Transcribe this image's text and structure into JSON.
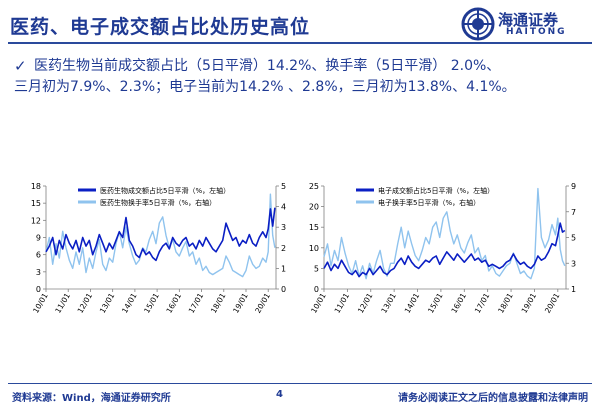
{
  "header": {
    "title": "医药、电子成交额占比处历史高位",
    "logo_cn": "海通证券",
    "logo_en": "HAITONG"
  },
  "bullet": {
    "check_icon": "check-icon",
    "line1": "医药生物当前成交额占比（5日平滑）14.2%、换手率（5日平滑） 2.0%、",
    "line2": "三月初为7.9%、2.3%；电子当前为14.2% 、2.8%，三月初为13.8%、4.1%。"
  },
  "footer": {
    "source": "资料来源：Wind，海通证券研究所",
    "page": "4",
    "disclaimer": "请务必阅读正文之后的信息披露和法律声明"
  },
  "colors": {
    "accent": "#1f3a93",
    "series_dark": "#0b1fc4",
    "series_light": "#8fc3ee"
  },
  "chart_data": [
    {
      "type": "line",
      "x_ticks": [
        "10/01",
        "11/01",
        "12/01",
        "13/01",
        "14/01",
        "15/01",
        "16/01",
        "17/01",
        "18/01",
        "19/01",
        "20/01"
      ],
      "x_range": [
        2010.0,
        2020.35
      ],
      "left_ylim": [
        0,
        18
      ],
      "left_ticks": [
        0,
        3,
        6,
        9,
        12,
        15,
        18
      ],
      "right_ylim": [
        0,
        5
      ],
      "right_ticks": [
        0,
        1,
        2,
        3,
        4,
        5
      ],
      "legend_position": "top",
      "series": [
        {
          "name": "医药生物成交额占比5日平滑（%，左轴）",
          "axis": "left",
          "color": "#0b1fc4",
          "x": [
            2010.0,
            2010.15,
            2010.3,
            2010.45,
            2010.6,
            2010.75,
            2010.9,
            2011.05,
            2011.2,
            2011.35,
            2011.5,
            2011.65,
            2011.8,
            2011.95,
            2012.1,
            2012.25,
            2012.4,
            2012.55,
            2012.7,
            2012.85,
            2013.0,
            2013.15,
            2013.3,
            2013.45,
            2013.6,
            2013.75,
            2013.9,
            2014.05,
            2014.2,
            2014.35,
            2014.5,
            2014.65,
            2014.8,
            2014.95,
            2015.1,
            2015.25,
            2015.4,
            2015.55,
            2015.7,
            2015.85,
            2016.0,
            2016.15,
            2016.3,
            2016.45,
            2016.6,
            2016.75,
            2016.9,
            2017.05,
            2017.2,
            2017.35,
            2017.5,
            2017.65,
            2017.8,
            2017.95,
            2018.1,
            2018.25,
            2018.4,
            2018.55,
            2018.7,
            2018.85,
            2019.0,
            2019.15,
            2019.3,
            2019.45,
            2019.6,
            2019.75,
            2019.9,
            2020.0,
            2020.1,
            2020.2,
            2020.3
          ],
          "values": [
            6.5,
            7.5,
            9.0,
            6.0,
            8.5,
            7.0,
            9.5,
            8.0,
            7.0,
            8.5,
            6.5,
            9.0,
            7.5,
            8.5,
            6.0,
            7.5,
            9.5,
            8.0,
            6.5,
            8.0,
            7.0,
            8.5,
            10.0,
            9.0,
            12.5,
            8.5,
            7.5,
            6.0,
            5.5,
            7.0,
            6.0,
            6.5,
            5.5,
            5.0,
            6.5,
            7.5,
            8.0,
            7.0,
            9.0,
            8.0,
            7.5,
            8.5,
            9.0,
            7.5,
            8.0,
            7.0,
            8.5,
            7.5,
            9.0,
            8.0,
            7.0,
            6.5,
            7.5,
            8.5,
            11.5,
            10.0,
            8.5,
            9.0,
            7.5,
            8.5,
            8.0,
            9.5,
            8.0,
            7.5,
            9.0,
            10.0,
            9.0,
            10.5,
            14.0,
            11.0,
            14.2
          ]
        },
        {
          "name": "医药生物换手率5日平滑（%，右轴）",
          "axis": "right",
          "color": "#8fc3ee",
          "x": [
            2010.0,
            2010.15,
            2010.3,
            2010.45,
            2010.6,
            2010.75,
            2010.9,
            2011.05,
            2011.2,
            2011.35,
            2011.5,
            2011.65,
            2011.8,
            2011.95,
            2012.1,
            2012.25,
            2012.4,
            2012.55,
            2012.7,
            2012.85,
            2013.0,
            2013.15,
            2013.3,
            2013.45,
            2013.6,
            2013.75,
            2013.9,
            2014.05,
            2014.2,
            2014.35,
            2014.5,
            2014.65,
            2014.8,
            2014.95,
            2015.1,
            2015.25,
            2015.4,
            2015.55,
            2015.7,
            2015.85,
            2016.0,
            2016.15,
            2016.3,
            2016.45,
            2016.6,
            2016.75,
            2016.9,
            2017.05,
            2017.2,
            2017.35,
            2017.5,
            2017.65,
            2017.8,
            2017.95,
            2018.1,
            2018.25,
            2018.4,
            2018.55,
            2018.7,
            2018.85,
            2019.0,
            2019.15,
            2019.3,
            2019.45,
            2019.6,
            2019.75,
            2019.9,
            2020.0,
            2020.1,
            2020.2,
            2020.3
          ],
          "values": [
            1.8,
            2.5,
            1.2,
            2.2,
            1.5,
            2.8,
            2.0,
            1.4,
            1.0,
            1.8,
            1.2,
            2.0,
            0.8,
            1.5,
            1.0,
            1.8,
            2.4,
            1.2,
            0.9,
            1.5,
            1.3,
            2.2,
            2.8,
            2.0,
            3.0,
            2.2,
            1.6,
            1.2,
            1.4,
            2.0,
            1.8,
            2.4,
            2.8,
            2.2,
            3.2,
            3.5,
            2.6,
            2.0,
            2.4,
            1.8,
            1.6,
            2.0,
            2.3,
            1.6,
            1.8,
            1.2,
            1.5,
            0.9,
            1.1,
            0.8,
            0.7,
            0.8,
            0.9,
            1.0,
            1.6,
            1.3,
            0.9,
            0.8,
            0.7,
            0.6,
            0.9,
            1.6,
            1.2,
            1.0,
            1.1,
            1.5,
            1.3,
            1.8,
            4.6,
            2.6,
            2.0
          ]
        }
      ]
    },
    {
      "type": "line",
      "x_ticks": [
        "10/01",
        "11/01",
        "12/01",
        "13/01",
        "14/01",
        "15/01",
        "16/01",
        "17/01",
        "18/01",
        "19/01",
        "20/01"
      ],
      "x_range": [
        2010.0,
        2020.35
      ],
      "left_ylim": [
        0,
        25
      ],
      "left_ticks": [
        0,
        5,
        10,
        15,
        20,
        25
      ],
      "right_ylim": [
        1,
        9
      ],
      "right_ticks": [
        1,
        3,
        5,
        7,
        9
      ],
      "legend_position": "top",
      "series": [
        {
          "name": "电子成交额占比5日平滑（%，左轴）",
          "axis": "left",
          "color": "#0b1fc4",
          "x": [
            2010.0,
            2010.15,
            2010.3,
            2010.45,
            2010.6,
            2010.75,
            2010.9,
            2011.05,
            2011.2,
            2011.35,
            2011.5,
            2011.65,
            2011.8,
            2011.95,
            2012.1,
            2012.25,
            2012.4,
            2012.55,
            2012.7,
            2012.85,
            2013.0,
            2013.15,
            2013.3,
            2013.45,
            2013.6,
            2013.75,
            2013.9,
            2014.05,
            2014.2,
            2014.35,
            2014.5,
            2014.65,
            2014.8,
            2014.95,
            2015.1,
            2015.25,
            2015.4,
            2015.55,
            2015.7,
            2015.85,
            2016.0,
            2016.15,
            2016.3,
            2016.45,
            2016.6,
            2016.75,
            2016.9,
            2017.05,
            2017.2,
            2017.35,
            2017.5,
            2017.65,
            2017.8,
            2017.95,
            2018.1,
            2018.25,
            2018.4,
            2018.55,
            2018.7,
            2018.85,
            2019.0,
            2019.15,
            2019.3,
            2019.45,
            2019.6,
            2019.75,
            2019.9,
            2020.0,
            2020.1,
            2020.2,
            2020.3
          ],
          "values": [
            5.0,
            6.5,
            4.5,
            6.0,
            5.0,
            7.0,
            5.5,
            4.0,
            3.5,
            4.5,
            3.0,
            4.0,
            3.5,
            5.0,
            3.5,
            4.5,
            5.5,
            4.0,
            3.5,
            4.5,
            5.0,
            6.5,
            7.5,
            6.0,
            8.0,
            6.5,
            5.5,
            5.0,
            6.0,
            7.0,
            6.5,
            7.5,
            8.0,
            6.0,
            7.5,
            9.0,
            8.0,
            7.0,
            8.5,
            7.5,
            6.5,
            7.5,
            8.5,
            7.0,
            7.5,
            6.5,
            7.0,
            5.5,
            6.0,
            5.5,
            5.0,
            5.5,
            6.5,
            7.0,
            8.5,
            7.0,
            6.0,
            6.5,
            5.5,
            5.0,
            6.0,
            8.0,
            7.0,
            7.5,
            9.0,
            11.0,
            10.5,
            13.0,
            16.0,
            13.8,
            14.2
          ]
        },
        {
          "name": "电子换手率5日平滑（%，右轴）",
          "axis": "right",
          "color": "#8fc3ee",
          "x": [
            2010.0,
            2010.15,
            2010.3,
            2010.45,
            2010.6,
            2010.75,
            2010.9,
            2011.05,
            2011.2,
            2011.35,
            2011.5,
            2011.65,
            2011.8,
            2011.95,
            2012.1,
            2012.25,
            2012.4,
            2012.55,
            2012.7,
            2012.85,
            2013.0,
            2013.15,
            2013.3,
            2013.45,
            2013.6,
            2013.75,
            2013.9,
            2014.05,
            2014.2,
            2014.35,
            2014.5,
            2014.65,
            2014.8,
            2014.95,
            2015.1,
            2015.25,
            2015.4,
            2015.55,
            2015.7,
            2015.85,
            2016.0,
            2016.15,
            2016.3,
            2016.45,
            2016.6,
            2016.75,
            2016.9,
            2017.05,
            2017.2,
            2017.35,
            2017.5,
            2017.65,
            2017.8,
            2017.95,
            2018.1,
            2018.25,
            2018.4,
            2018.55,
            2018.7,
            2018.85,
            2019.0,
            2019.15,
            2019.3,
            2019.45,
            2019.6,
            2019.75,
            2019.9,
            2020.0,
            2020.1,
            2020.2,
            2020.3
          ],
          "values": [
            3.5,
            4.5,
            2.8,
            4.0,
            3.2,
            5.0,
            3.8,
            2.8,
            2.2,
            3.2,
            2.0,
            2.8,
            1.8,
            3.0,
            2.2,
            3.2,
            4.0,
            2.6,
            2.0,
            3.0,
            3.0,
            4.5,
            5.8,
            4.2,
            5.5,
            4.5,
            3.6,
            3.2,
            4.0,
            5.0,
            4.5,
            5.8,
            6.2,
            5.0,
            6.5,
            7.0,
            5.5,
            4.5,
            5.2,
            4.2,
            3.8,
            4.6,
            5.2,
            3.8,
            4.2,
            3.2,
            3.6,
            2.4,
            2.8,
            2.2,
            2.0,
            2.4,
            2.8,
            3.0,
            3.8,
            3.0,
            2.2,
            2.4,
            2.0,
            1.8,
            2.6,
            8.8,
            5.0,
            4.2,
            4.8,
            6.0,
            5.2,
            6.5,
            4.1,
            3.2,
            2.8
          ]
        }
      ]
    }
  ]
}
